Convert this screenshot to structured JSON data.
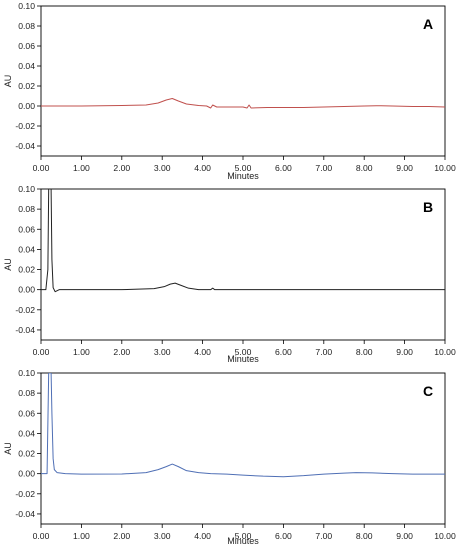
{
  "chart_data": [
    {
      "type": "line",
      "panel_label": "A",
      "xlabel": "Minutes",
      "ylabel": "AU",
      "xlim": [
        0,
        10
      ],
      "ylim": [
        -0.05,
        0.1
      ],
      "xticks": [
        "0.00",
        "1.00",
        "2.00",
        "3.00",
        "4.00",
        "5.00",
        "6.00",
        "7.00",
        "8.00",
        "9.00",
        "10.00"
      ],
      "yticks": [
        "-0.04",
        "-0.02",
        "0.00",
        "0.02",
        "0.04",
        "0.06",
        "0.08",
        "0.10"
      ],
      "color": "#c0504d",
      "series": [
        {
          "x": [
            0,
            1.0,
            2.0,
            2.6,
            2.9,
            3.1,
            3.25,
            3.4,
            3.6,
            3.9,
            4.1,
            4.2,
            4.25,
            4.35,
            4.6,
            5.0,
            5.1,
            5.15,
            5.2,
            5.6,
            6.0,
            6.5,
            7.0,
            7.5,
            8.0,
            8.3,
            8.7,
            9.2,
            9.6,
            10.0
          ],
          "y": [
            0.0,
            0.0,
            0.0005,
            0.001,
            0.003,
            0.006,
            0.0075,
            0.005,
            0.002,
            0.0005,
            0.0,
            -0.002,
            0.001,
            -0.001,
            -0.001,
            -0.001,
            -0.002,
            0.001,
            -0.002,
            -0.0015,
            -0.0015,
            -0.0015,
            -0.001,
            -0.0005,
            0.0,
            0.0003,
            0.0,
            -0.0005,
            -0.0005,
            -0.001
          ]
        }
      ]
    },
    {
      "type": "line",
      "panel_label": "B",
      "xlabel": "Minutes",
      "ylabel": "AU",
      "xlim": [
        0,
        10
      ],
      "ylim": [
        -0.05,
        0.1
      ],
      "xticks": [
        "0.00",
        "1.00",
        "2.00",
        "3.00",
        "4.00",
        "5.00",
        "6.00",
        "7.00",
        "8.00",
        "9.00",
        "10.00"
      ],
      "yticks": [
        "-0.04",
        "-0.02",
        "0.00",
        "0.02",
        "0.04",
        "0.06",
        "0.08",
        "0.10"
      ],
      "color": "#222222",
      "series": [
        {
          "x": [
            0,
            0.12,
            0.17,
            0.19,
            0.21,
            0.23,
            0.25,
            0.27,
            0.3,
            0.35,
            0.45,
            1.0,
            2.0,
            2.8,
            3.05,
            3.2,
            3.32,
            3.45,
            3.65,
            3.9,
            4.2,
            4.25,
            4.3,
            5.0,
            6.0,
            7.0,
            8.0,
            9.0,
            10.0
          ],
          "y": [
            0.0,
            0.0,
            0.02,
            0.1,
            0.1,
            0.1,
            0.1,
            0.03,
            0.002,
            -0.002,
            0.0,
            0.0,
            0.0,
            0.001,
            0.003,
            0.0055,
            0.0065,
            0.0045,
            0.0015,
            0.0,
            0.0,
            0.0015,
            0.0,
            0.0,
            0.0,
            0.0,
            0.0,
            0.0,
            0.0
          ]
        }
      ]
    },
    {
      "type": "line",
      "panel_label": "C",
      "xlabel": "Minutes",
      "ylabel": "AU",
      "xlim": [
        0,
        10
      ],
      "ylim": [
        -0.05,
        0.1
      ],
      "xticks": [
        "0.00",
        "1.00",
        "2.00",
        "3.00",
        "4.00",
        "5.00",
        "6.00",
        "7.00",
        "8.00",
        "9.00",
        "10.00"
      ],
      "yticks": [
        "-0.04",
        "-0.02",
        "0.00",
        "0.02",
        "0.04",
        "0.06",
        "0.08",
        "0.10"
      ],
      "color": "#4f6fb5",
      "series": [
        {
          "x": [
            0,
            0.15,
            0.19,
            0.21,
            0.23,
            0.25,
            0.27,
            0.3,
            0.33,
            0.4,
            0.6,
            1.0,
            2.0,
            2.6,
            2.9,
            3.1,
            3.25,
            3.4,
            3.6,
            3.9,
            4.2,
            4.6,
            5.0,
            5.5,
            6.0,
            6.5,
            7.0,
            7.5,
            7.8,
            8.2,
            8.7,
            9.2,
            10.0
          ],
          "y": [
            0.0,
            0.0,
            0.1,
            0.1,
            0.1,
            0.1,
            0.06,
            0.015,
            0.004,
            0.001,
            0.0,
            -0.0005,
            -0.0003,
            0.001,
            0.004,
            0.007,
            0.0095,
            0.007,
            0.003,
            0.001,
            0.0,
            -0.0005,
            -0.0015,
            -0.0025,
            -0.003,
            -0.002,
            -0.0005,
            0.0005,
            0.001,
            0.0008,
            0.0,
            -0.0005,
            -0.0005
          ]
        }
      ]
    }
  ]
}
